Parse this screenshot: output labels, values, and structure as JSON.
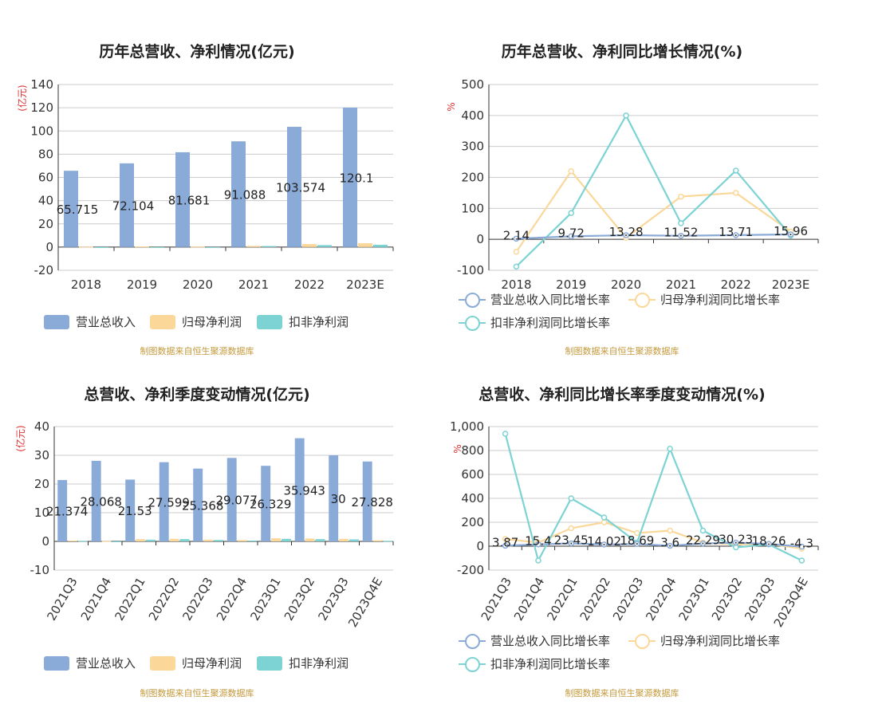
{
  "colors": {
    "revenue": "#8aaad8",
    "net_profit": "#fbd89a",
    "deducted_profit": "#7dd3d3",
    "axis": "#333333",
    "grid": "#cccccc",
    "unit": "#e03030"
  },
  "source_note": "制图数据来自恒生聚源数据库",
  "chart_data": [
    {
      "id": "annual-amount",
      "type": "bar",
      "title": "历年总营收、净利情况(亿元)",
      "unit_label": "(亿元)",
      "categories": [
        "2018",
        "2019",
        "2020",
        "2021",
        "2022",
        "2023E"
      ],
      "series": [
        {
          "name": "营业总收入",
          "values": [
            65.715,
            72.104,
            81.681,
            91.088,
            103.574,
            120.1
          ]
        },
        {
          "name": "归母净利润",
          "values": [
            0.3,
            0.5,
            0.4,
            1.0,
            2.6,
            3.3
          ]
        },
        {
          "name": "扣非净利润",
          "values": [
            -0.4,
            -0.3,
            -0.5,
            0.9,
            1.7,
            2.0
          ]
        }
      ],
      "data_labels": [
        "65.715",
        "72.104",
        "81.681",
        "91.088",
        "103.574",
        "120.1"
      ],
      "ylim": [
        -20,
        140
      ],
      "yticks": [
        -20,
        0,
        20,
        40,
        60,
        80,
        100,
        120,
        140
      ]
    },
    {
      "id": "annual-growth",
      "type": "line",
      "title": "历年总营收、净利同比增长情况(%)",
      "unit_label": "%",
      "categories": [
        "2018",
        "2019",
        "2020",
        "2021",
        "2022",
        "2023E"
      ],
      "series": [
        {
          "name": "营业总收入同比增长率",
          "values": [
            2.14,
            9.72,
            13.28,
            11.52,
            13.71,
            15.96
          ]
        },
        {
          "name": "归母净利润同比增长率",
          "values": [
            -40,
            220,
            5,
            138,
            150,
            25
          ]
        },
        {
          "name": "扣非净利润同比增长率",
          "values": [
            -88,
            85,
            400,
            52,
            222,
            12
          ]
        }
      ],
      "data_labels": [
        "2.14",
        "9.72",
        "13.28",
        "11.52",
        "13.71",
        "15.96"
      ],
      "ylim": [
        -100,
        500
      ],
      "yticks": [
        -100,
        0,
        100,
        200,
        300,
        400,
        500
      ]
    },
    {
      "id": "quarterly-amount",
      "type": "bar",
      "title": "总营收、净利季度变动情况(亿元)",
      "unit_label": "(亿元)",
      "categories": [
        "2021Q3",
        "2021Q4",
        "2022Q1",
        "2022Q2",
        "2022Q3",
        "2022Q4",
        "2023Q1",
        "2023Q2",
        "2023Q3",
        "2023Q4E"
      ],
      "series": [
        {
          "name": "营业总收入",
          "values": [
            21.374,
            28.068,
            21.53,
            27.599,
            25.368,
            29.077,
            26.329,
            35.943,
            30,
            27.828
          ]
        },
        {
          "name": "归母净利润",
          "values": [
            0.3,
            0.1,
            0.8,
            0.9,
            0.6,
            0.5,
            1.1,
            1.0,
            0.9,
            0.4
          ]
        },
        {
          "name": "扣非净利润",
          "values": [
            0.2,
            -0.2,
            0.6,
            0.8,
            0.5,
            0.3,
            0.9,
            0.8,
            0.7,
            0.2
          ]
        }
      ],
      "data_labels": [
        "21.374",
        "28.068",
        "21.53",
        "27.599",
        "25.368",
        "29.077",
        "26.329",
        "35.943",
        "30",
        "27.828"
      ],
      "ylim": [
        -10,
        40
      ],
      "yticks": [
        -10,
        0,
        10,
        20,
        30,
        40
      ]
    },
    {
      "id": "quarterly-growth",
      "type": "line",
      "title": "总营收、净利同比增长率季度变动情况(%)",
      "unit_label": "%",
      "categories": [
        "2021Q3",
        "2021Q4",
        "2022Q1",
        "2022Q2",
        "2022Q3",
        "2022Q4",
        "2023Q1",
        "2023Q2",
        "2023Q3",
        "2023Q4E"
      ],
      "series": [
        {
          "name": "营业总收入同比增长率",
          "values": [
            3.87,
            15.4,
            23.45,
            14.02,
            18.69,
            3.6,
            22.29,
            30.23,
            18.26,
            -4.3
          ]
        },
        {
          "name": "归母净利润同比增长率",
          "values": [
            60,
            30,
            150,
            200,
            110,
            130,
            30,
            15,
            20,
            -20
          ]
        },
        {
          "name": "扣非净利润同比增长率",
          "values": [
            940,
            -120,
            400,
            240,
            30,
            815,
            130,
            -10,
            15,
            -120
          ]
        }
      ],
      "data_labels": [
        "3.87",
        "15.4",
        "23.45",
        "14.02",
        "18.69",
        "3.6",
        "22.29",
        "30.23",
        "18.26",
        "-4.3"
      ],
      "ylim": [
        -200,
        1000
      ],
      "yticks": [
        -200,
        0,
        200,
        400,
        600,
        800,
        1000
      ],
      "ytick_labels": [
        "-200",
        "0",
        "200",
        "400",
        "600",
        "800",
        "1,000"
      ]
    }
  ]
}
